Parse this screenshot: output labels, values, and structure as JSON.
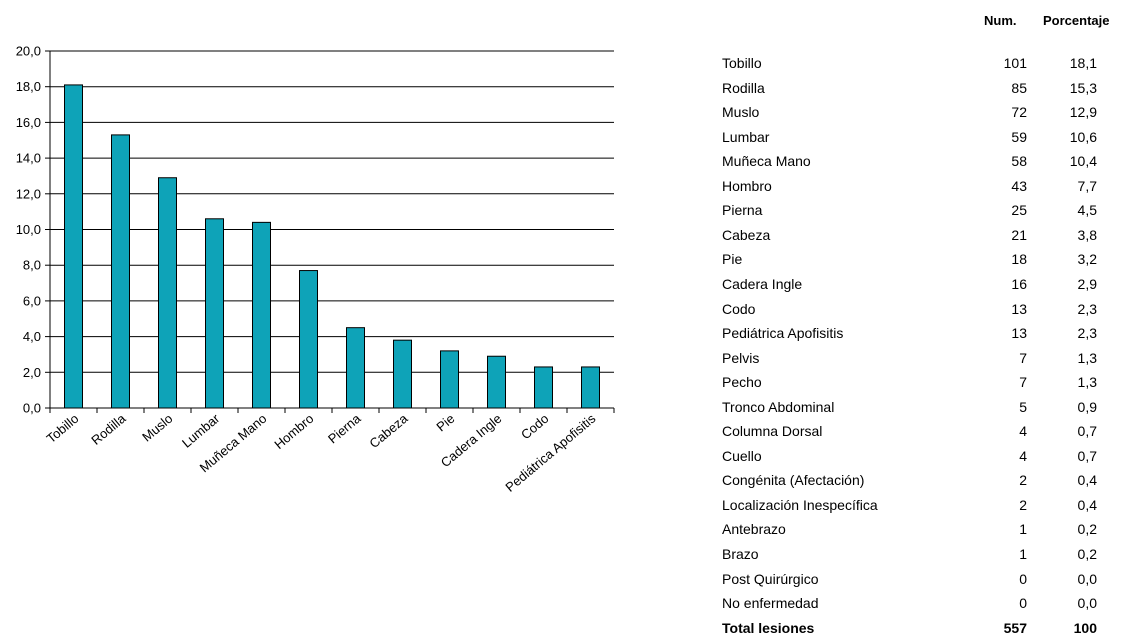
{
  "chart_data": {
    "type": "bar",
    "categories": [
      "Tobillo",
      "Rodilla",
      "Muslo",
      "Lumbar",
      "Muñeca Mano",
      "Hombro",
      "Pierna",
      "Cabeza",
      "Pie",
      "Cadera Ingle",
      "Codo",
      "Pediátrica Apofisitis"
    ],
    "values": [
      18.1,
      15.3,
      12.9,
      10.6,
      10.4,
      7.7,
      4.5,
      3.8,
      3.2,
      2.9,
      2.3,
      2.3
    ],
    "ylim": [
      0,
      20
    ],
    "yticks": [
      "0,0",
      "2,0",
      "4,0",
      "6,0",
      "8,0",
      "10,0",
      "12,0",
      "14,0",
      "16,0",
      "18,0",
      "20,0"
    ],
    "grid": true,
    "bar_color": "#0ea3b8"
  },
  "table": {
    "headers": {
      "num": "Num.",
      "pct": "Porcentaje"
    },
    "rows": [
      {
        "name": "Tobillo",
        "num": "101",
        "pct": "18,1"
      },
      {
        "name": "Rodilla",
        "num": "85",
        "pct": "15,3"
      },
      {
        "name": "Muslo",
        "num": "72",
        "pct": "12,9"
      },
      {
        "name": "Lumbar",
        "num": "59",
        "pct": "10,6"
      },
      {
        "name": "Muñeca Mano",
        "num": "58",
        "pct": "10,4"
      },
      {
        "name": "Hombro",
        "num": "43",
        "pct": "7,7"
      },
      {
        "name": "Pierna",
        "num": "25",
        "pct": "4,5"
      },
      {
        "name": "Cabeza",
        "num": "21",
        "pct": "3,8"
      },
      {
        "name": "Pie",
        "num": "18",
        "pct": "3,2"
      },
      {
        "name": "Cadera Ingle",
        "num": "16",
        "pct": "2,9"
      },
      {
        "name": "Codo",
        "num": "13",
        "pct": "2,3"
      },
      {
        "name": "Pediátrica Apofisitis",
        "num": "13",
        "pct": "2,3"
      },
      {
        "name": "Pelvis",
        "num": "7",
        "pct": "1,3"
      },
      {
        "name": "Pecho",
        "num": "7",
        "pct": "1,3"
      },
      {
        "name": "Tronco Abdominal",
        "num": "5",
        "pct": "0,9"
      },
      {
        "name": "Columna Dorsal",
        "num": "4",
        "pct": "0,7"
      },
      {
        "name": "Cuello",
        "num": "4",
        "pct": "0,7"
      },
      {
        "name": "Congénita (Afectación)",
        "num": "2",
        "pct": "0,4"
      },
      {
        "name": "Localización Inespecífica",
        "num": "2",
        "pct": "0,4"
      },
      {
        "name": "Antebrazo",
        "num": "1",
        "pct": "0,2"
      },
      {
        "name": "Brazo",
        "num": "1",
        "pct": "0,2"
      },
      {
        "name": "Post Quirúrgico",
        "num": "0",
        "pct": "0,0"
      },
      {
        "name": "No enfermedad",
        "num": "0",
        "pct": "0,0"
      }
    ],
    "total": {
      "name": "Total lesiones",
      "num": "557",
      "pct": "100"
    }
  }
}
